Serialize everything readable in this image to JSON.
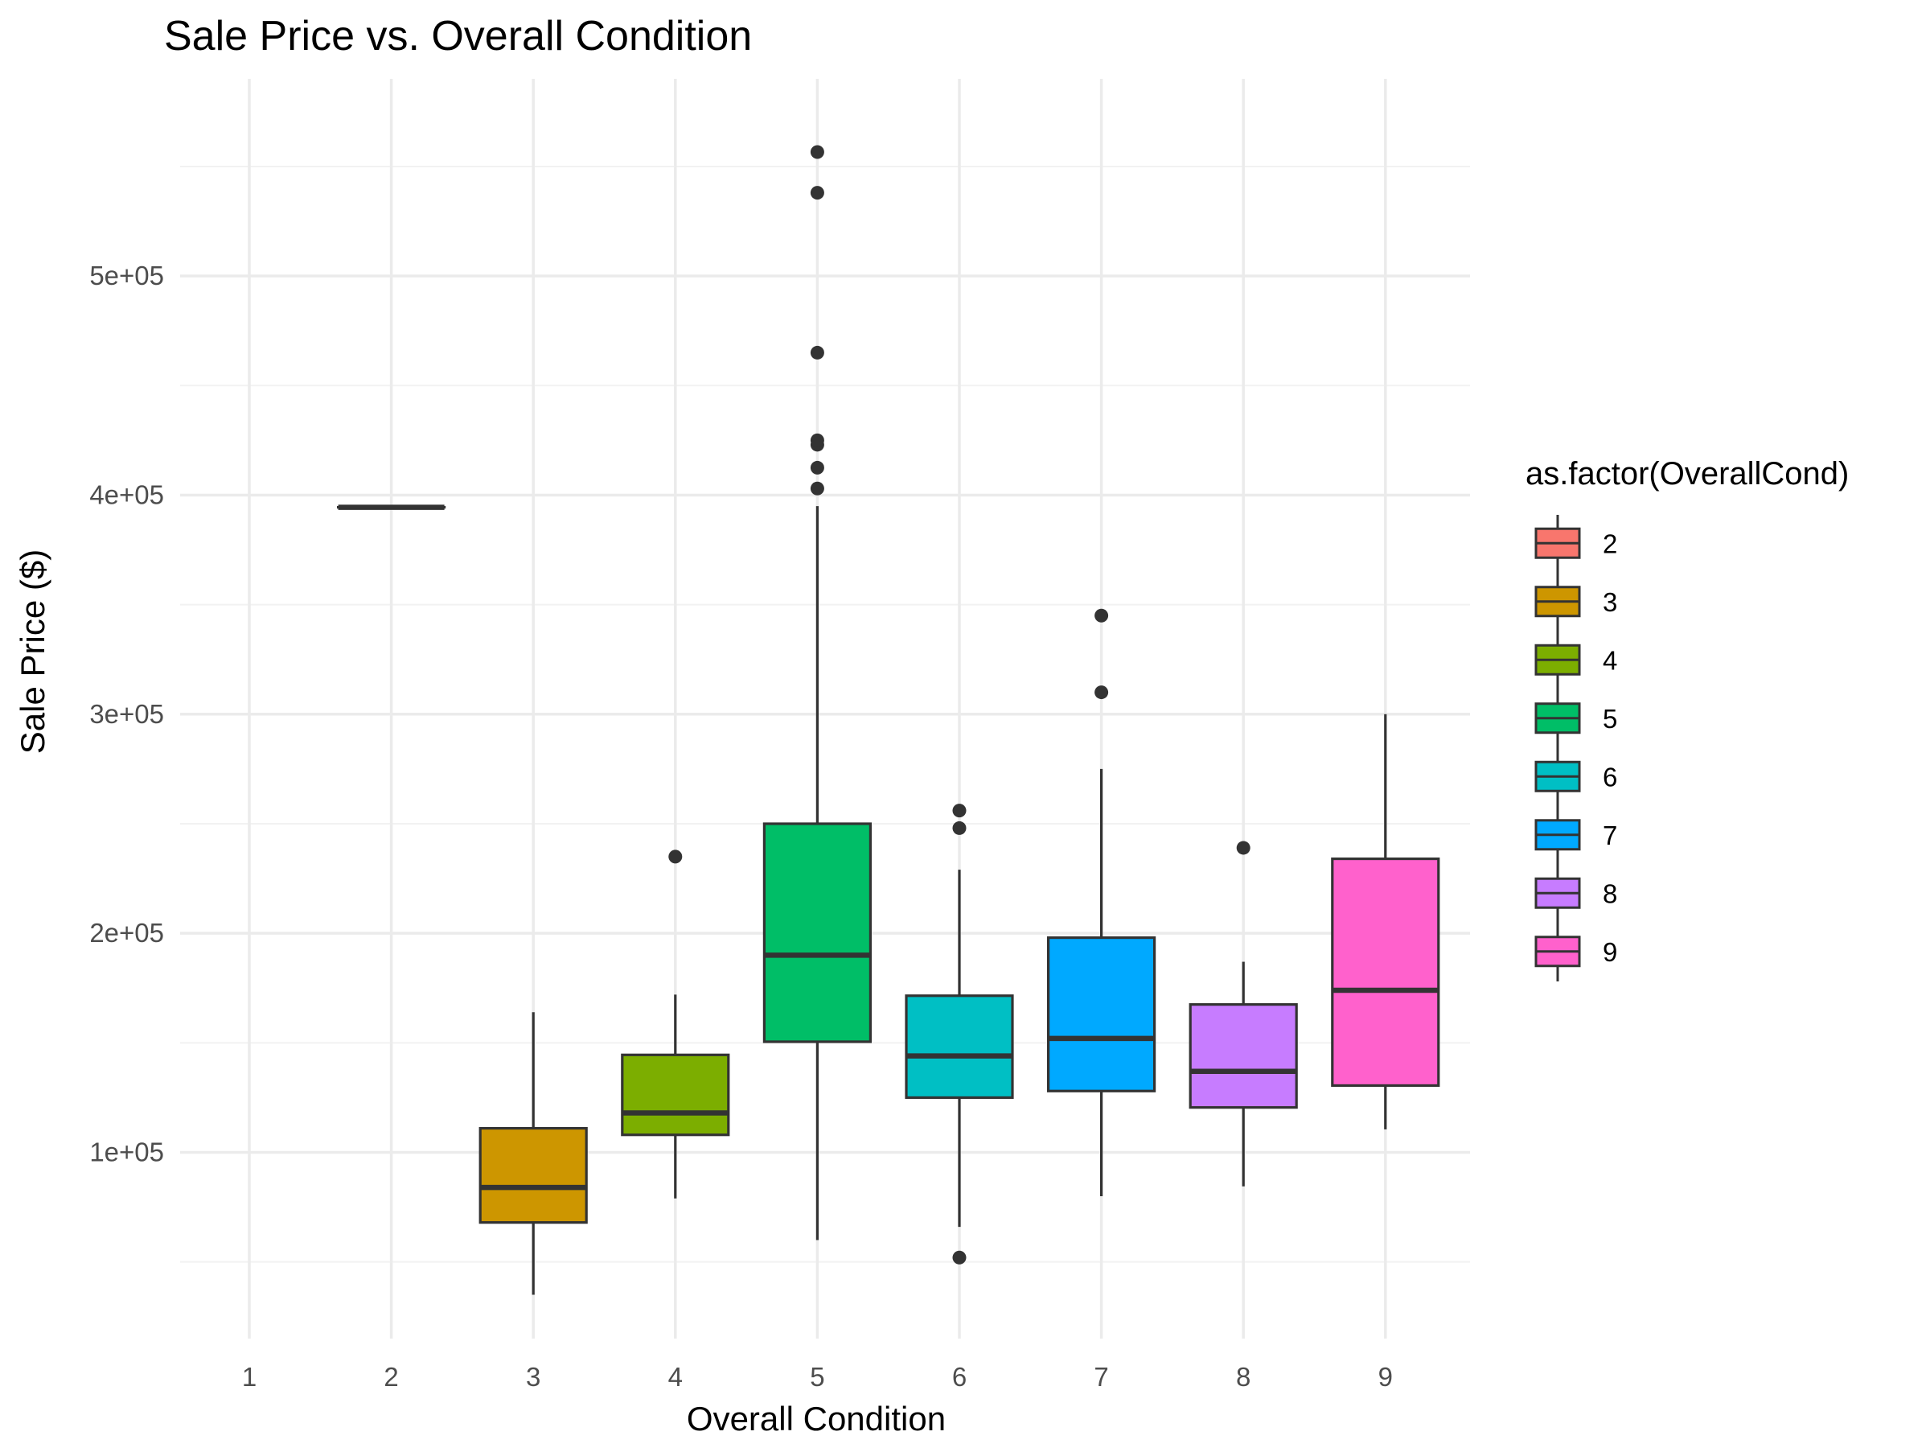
{
  "chart_data": {
    "type": "box",
    "title": "Sale Price vs. Overall Condition",
    "xlabel": "Overall Condition",
    "ylabel": "Sale Price ($)",
    "categories": [
      "1",
      "2",
      "3",
      "4",
      "5",
      "6",
      "7",
      "8",
      "9"
    ],
    "ylim": [
      15000,
      590000
    ],
    "yticks": [
      100000,
      200000,
      300000,
      400000,
      500000
    ],
    "ytick_labels": [
      "1e+05",
      "2e+05",
      "3e+05",
      "4e+05",
      "5e+05"
    ],
    "grid": true,
    "legend": {
      "title": "as.factor(OverallCond)",
      "position": "right",
      "entries": [
        "2",
        "3",
        "4",
        "5",
        "6",
        "7",
        "8",
        "9"
      ]
    },
    "series": [
      {
        "name": "2",
        "x": "2",
        "color": "#F8766D",
        "lower_whisker": 394432,
        "q1": 394432,
        "median": 394432,
        "q3": 394432,
        "upper_whisker": 394432,
        "outliers": []
      },
      {
        "name": "3",
        "x": "3",
        "color": "#CD9600",
        "lower_whisker": 35000,
        "q1": 68000,
        "median": 84000,
        "q3": 111000,
        "upper_whisker": 164000,
        "outliers": []
      },
      {
        "name": "4",
        "x": "4",
        "color": "#7CAE00",
        "lower_whisker": 79000,
        "q1": 108000,
        "median": 118000,
        "q3": 144500,
        "upper_whisker": 172000,
        "outliers": [
          235000
        ]
      },
      {
        "name": "5",
        "x": "5",
        "color": "#00BE67",
        "lower_whisker": 60000,
        "q1": 150500,
        "median": 190000,
        "q3": 250000,
        "upper_whisker": 395000,
        "outliers": [
          403000,
          412500,
          423000,
          425000,
          465000,
          538000,
          556581
        ]
      },
      {
        "name": "6",
        "x": "6",
        "color": "#00BFC4",
        "lower_whisker": 66000,
        "q1": 125000,
        "median": 144000,
        "q3": 171500,
        "upper_whisker": 229000,
        "outliers": [
          52000,
          248000,
          256000
        ]
      },
      {
        "name": "7",
        "x": "7",
        "color": "#00A9FF",
        "lower_whisker": 80000,
        "q1": 128000,
        "median": 152000,
        "q3": 198000,
        "upper_whisker": 275000,
        "outliers": [
          310000,
          345000
        ]
      },
      {
        "name": "8",
        "x": "8",
        "color": "#C77CFF",
        "lower_whisker": 84500,
        "q1": 120500,
        "median": 137000,
        "q3": 167500,
        "upper_whisker": 187000,
        "outliers": [
          239000
        ]
      },
      {
        "name": "9",
        "x": "9",
        "color": "#FF61CC",
        "lower_whisker": 110500,
        "q1": 130500,
        "median": 174000,
        "q3": 234000,
        "upper_whisker": 300000,
        "outliers": []
      }
    ]
  }
}
